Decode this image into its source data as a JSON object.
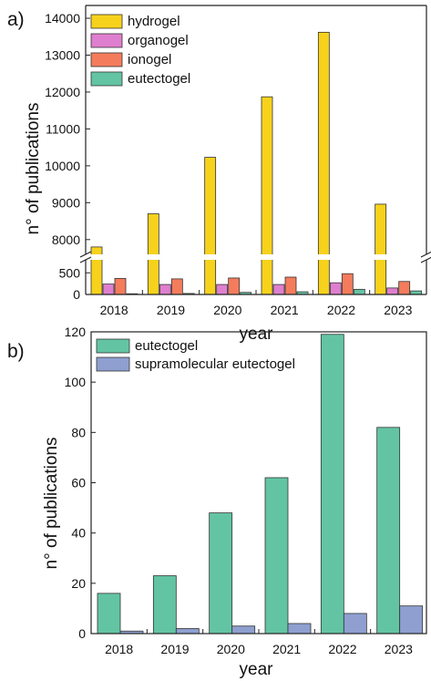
{
  "colors": {
    "hydrogel": "#f7d21c",
    "organogel": "#df7fcf",
    "ionogel": "#f47c5c",
    "eutectogel": "#63c4a3",
    "supramolecular": "#8e9fd0"
  },
  "chart_data": [
    {
      "panel_label": "a)",
      "type": "bar",
      "categories": [
        "2018",
        "2019",
        "2020",
        "2021",
        "2022",
        "2023"
      ],
      "series": [
        {
          "name": "hydrogel",
          "color_key": "hydrogel",
          "values": [
            7800,
            8700,
            10230,
            11870,
            13620,
            8960
          ]
        },
        {
          "name": "organogel",
          "color_key": "organogel",
          "values": [
            240,
            230,
            230,
            230,
            270,
            150
          ]
        },
        {
          "name": "ionogel",
          "color_key": "ionogel",
          "values": [
            370,
            360,
            380,
            400,
            480,
            300
          ]
        },
        {
          "name": "eutectogel",
          "color_key": "eutectogel",
          "values": [
            16,
            23,
            48,
            62,
            119,
            82
          ]
        }
      ],
      "xlabel": "year",
      "ylabel": "n° of publications",
      "y_axis_break": {
        "lower_range": [
          0,
          800
        ],
        "upper_range": [
          7600,
          14000
        ]
      },
      "yticks_lower": [
        0,
        500
      ],
      "yticks_upper": [
        8000,
        9000,
        10000,
        11000,
        12000,
        13000,
        14000
      ],
      "legend_position": "top-left"
    },
    {
      "panel_label": "b)",
      "type": "bar",
      "categories": [
        "2018",
        "2019",
        "2020",
        "2021",
        "2022",
        "2023"
      ],
      "series": [
        {
          "name": "eutectogel",
          "color_key": "eutectogel",
          "values": [
            16,
            23,
            48,
            62,
            119,
            82
          ]
        },
        {
          "name": "supramolecular eutectogel",
          "color_key": "supramolecular",
          "values": [
            1,
            2,
            3,
            4,
            8,
            11
          ]
        }
      ],
      "xlabel": "year",
      "ylabel": "n° of publications",
      "ylim": [
        0,
        120
      ],
      "yticks": [
        0,
        20,
        40,
        60,
        80,
        100,
        120
      ],
      "legend_position": "top-left"
    }
  ]
}
